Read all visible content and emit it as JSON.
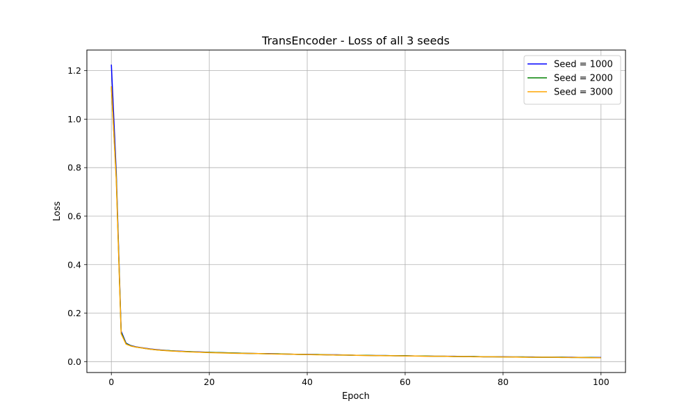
{
  "chart_data": {
    "type": "line",
    "title": "TransEncoder - Loss of all 3 seeds",
    "xlabel": "Epoch",
    "ylabel": "Loss",
    "xlim": [
      -5,
      105
    ],
    "ylim": [
      -0.045,
      1.285
    ],
    "xticks": [
      0,
      20,
      40,
      60,
      80,
      100
    ],
    "yticks": [
      0.0,
      0.2,
      0.4,
      0.6,
      0.8,
      1.0,
      1.2
    ],
    "grid": true,
    "legend_position": "top-right",
    "x": [
      0,
      1,
      2,
      3,
      4,
      5,
      6,
      7,
      8,
      9,
      10,
      12,
      14,
      16,
      18,
      20,
      22,
      24,
      26,
      28,
      30,
      32,
      34,
      36,
      38,
      40,
      42,
      44,
      46,
      48,
      50,
      52,
      54,
      56,
      58,
      60,
      62,
      64,
      66,
      68,
      70,
      72,
      74,
      76,
      78,
      80,
      82,
      84,
      86,
      88,
      90,
      92,
      94,
      96,
      98,
      100
    ],
    "series": [
      {
        "name": "Seed = 1000",
        "color": "#0000ff",
        "values": [
          1.225,
          0.78,
          0.125,
          0.076,
          0.066,
          0.061,
          0.058,
          0.055,
          0.052,
          0.05,
          0.048,
          0.045,
          0.043,
          0.041,
          0.04,
          0.038,
          0.037,
          0.036,
          0.035,
          0.034,
          0.033,
          0.033,
          0.032,
          0.031,
          0.03,
          0.03,
          0.029,
          0.028,
          0.028,
          0.027,
          0.026,
          0.026,
          0.025,
          0.025,
          0.024,
          0.024,
          0.023,
          0.023,
          0.022,
          0.022,
          0.022,
          0.021,
          0.021,
          0.02,
          0.02,
          0.02,
          0.019,
          0.019,
          0.019,
          0.018,
          0.018,
          0.018,
          0.018,
          0.017,
          0.017,
          0.017
        ]
      },
      {
        "name": "Seed = 2000",
        "color": "#008000",
        "values": [
          1.135,
          0.76,
          0.12,
          0.074,
          0.065,
          0.06,
          0.057,
          0.054,
          0.051,
          0.049,
          0.047,
          0.045,
          0.042,
          0.041,
          0.039,
          0.038,
          0.037,
          0.036,
          0.035,
          0.034,
          0.033,
          0.032,
          0.032,
          0.031,
          0.03,
          0.029,
          0.029,
          0.028,
          0.027,
          0.027,
          0.026,
          0.026,
          0.025,
          0.025,
          0.024,
          0.024,
          0.023,
          0.023,
          0.022,
          0.022,
          0.021,
          0.021,
          0.021,
          0.02,
          0.02,
          0.019,
          0.019,
          0.019,
          0.018,
          0.018,
          0.018,
          0.018,
          0.017,
          0.017,
          0.017,
          0.016
        ]
      },
      {
        "name": "Seed = 3000",
        "color": "#ffa500",
        "values": [
          1.135,
          0.75,
          0.115,
          0.072,
          0.064,
          0.06,
          0.057,
          0.054,
          0.051,
          0.049,
          0.047,
          0.044,
          0.042,
          0.04,
          0.039,
          0.037,
          0.036,
          0.035,
          0.034,
          0.034,
          0.033,
          0.032,
          0.031,
          0.031,
          0.03,
          0.029,
          0.028,
          0.028,
          0.027,
          0.027,
          0.026,
          0.025,
          0.025,
          0.024,
          0.024,
          0.023,
          0.023,
          0.022,
          0.022,
          0.022,
          0.021,
          0.021,
          0.02,
          0.02,
          0.02,
          0.019,
          0.019,
          0.018,
          0.018,
          0.018,
          0.018,
          0.017,
          0.017,
          0.017,
          0.016,
          0.016
        ]
      }
    ]
  }
}
